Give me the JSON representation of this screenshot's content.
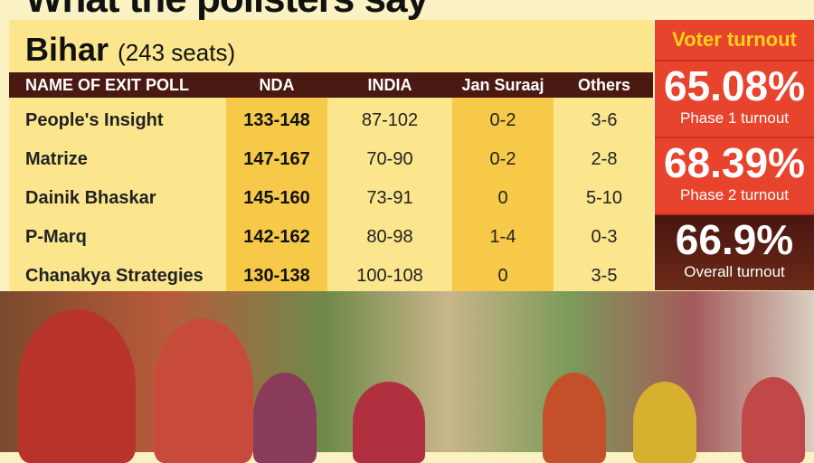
{
  "title": "What the pollsters say",
  "state": {
    "name": "Bihar",
    "seats": "(243 seats)"
  },
  "table": {
    "headers": [
      "NAME OF EXIT POLL",
      "NDA",
      "INDIA",
      "Jan Suraaj",
      "Others"
    ],
    "rows": [
      [
        "People's Insight",
        "133-148",
        "87-102",
        "0-2",
        "3-6"
      ],
      [
        "Matrize",
        "147-167",
        "70-90",
        "0-2",
        "2-8"
      ],
      [
        "Dainik Bhaskar",
        "145-160",
        "73-91",
        "0",
        "5-10"
      ],
      [
        "P-Marq",
        "142-162",
        "80-98",
        "1-4",
        "0-3"
      ],
      [
        "Chanakya Strategies",
        "130-138",
        "100-108",
        "0",
        "3-5"
      ]
    ]
  },
  "turnout": {
    "heading": "Voter turnout",
    "items": [
      {
        "value": "65.08%",
        "label": "Phase 1 turnout"
      },
      {
        "value": "68.39%",
        "label": "Phase 2 turnout"
      },
      {
        "value": "66.9%",
        "label": "Overall turnout"
      }
    ]
  },
  "colors": {
    "header": "#4a1912",
    "accent": "#e8432d",
    "highlight": "#f7c948"
  }
}
